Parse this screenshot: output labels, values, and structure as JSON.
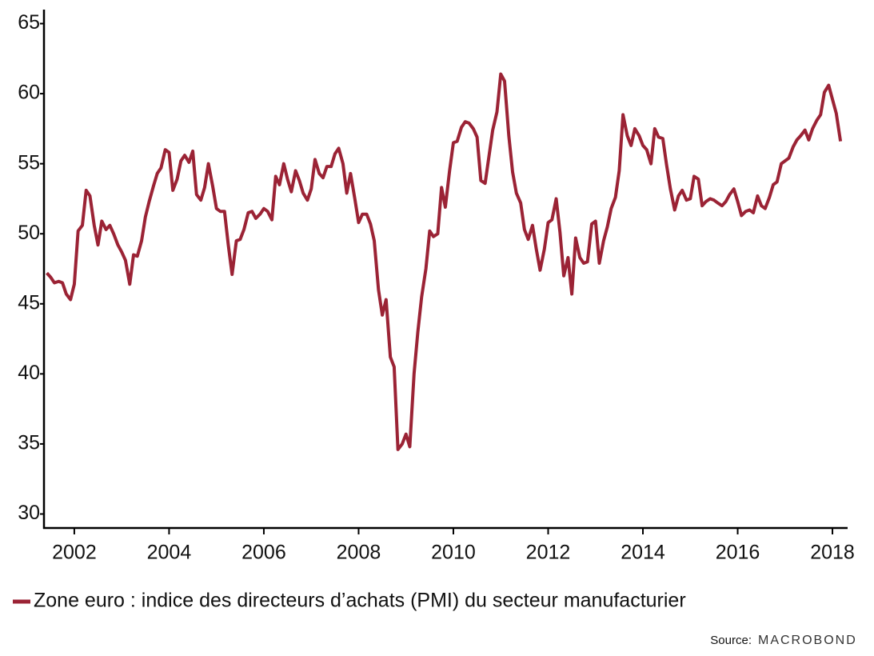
{
  "chart_data": {
    "type": "line",
    "x": [
      2001.42,
      2001.5,
      2001.58,
      2001.67,
      2001.75,
      2001.83,
      2001.92,
      2002.0,
      2002.08,
      2002.17,
      2002.25,
      2002.33,
      2002.42,
      2002.5,
      2002.58,
      2002.67,
      2002.75,
      2002.83,
      2002.92,
      2003.0,
      2003.08,
      2003.17,
      2003.25,
      2003.33,
      2003.42,
      2003.5,
      2003.58,
      2003.67,
      2003.75,
      2003.83,
      2003.92,
      2004.0,
      2004.08,
      2004.17,
      2004.25,
      2004.33,
      2004.42,
      2004.5,
      2004.58,
      2004.67,
      2004.75,
      2004.83,
      2004.92,
      2005.0,
      2005.08,
      2005.17,
      2005.25,
      2005.33,
      2005.42,
      2005.5,
      2005.58,
      2005.67,
      2005.75,
      2005.83,
      2005.92,
      2006.0,
      2006.08,
      2006.17,
      2006.25,
      2006.33,
      2006.42,
      2006.5,
      2006.58,
      2006.67,
      2006.75,
      2006.83,
      2006.92,
      2007.0,
      2007.08,
      2007.17,
      2007.25,
      2007.33,
      2007.42,
      2007.5,
      2007.58,
      2007.67,
      2007.75,
      2007.83,
      2007.92,
      2008.0,
      2008.08,
      2008.17,
      2008.25,
      2008.33,
      2008.42,
      2008.5,
      2008.58,
      2008.67,
      2008.75,
      2008.83,
      2008.92,
      2009.0,
      2009.08,
      2009.17,
      2009.25,
      2009.33,
      2009.42,
      2009.5,
      2009.58,
      2009.67,
      2009.75,
      2009.83,
      2009.92,
      2010.0,
      2010.08,
      2010.17,
      2010.25,
      2010.33,
      2010.42,
      2010.5,
      2010.58,
      2010.67,
      2010.75,
      2010.83,
      2010.92,
      2011.0,
      2011.08,
      2011.17,
      2011.25,
      2011.33,
      2011.42,
      2011.5,
      2011.58,
      2011.67,
      2011.75,
      2011.83,
      2011.92,
      2012.0,
      2012.08,
      2012.17,
      2012.25,
      2012.33,
      2012.42,
      2012.5,
      2012.58,
      2012.67,
      2012.75,
      2012.83,
      2012.92,
      2013.0,
      2013.08,
      2013.17,
      2013.25,
      2013.33,
      2013.42,
      2013.5,
      2013.58,
      2013.67,
      2013.75,
      2013.83,
      2013.92,
      2014.0,
      2014.08,
      2014.17,
      2014.25,
      2014.33,
      2014.42,
      2014.5,
      2014.58,
      2014.67,
      2014.75,
      2014.83,
      2014.92,
      2015.0,
      2015.08,
      2015.17,
      2015.25,
      2015.33,
      2015.42,
      2015.5,
      2015.58,
      2015.67,
      2015.75,
      2015.83,
      2015.92,
      2016.0,
      2016.08,
      2016.17,
      2016.25,
      2016.33,
      2016.42,
      2016.5,
      2016.58,
      2016.67,
      2016.75,
      2016.83,
      2016.92,
      2017.0,
      2017.08,
      2017.17,
      2017.25,
      2017.33,
      2017.42,
      2017.5,
      2017.58,
      2017.67,
      2017.75,
      2017.83,
      2017.92,
      2018.0,
      2018.08,
      2018.17
    ],
    "series": [
      {
        "name": "Zone euro : indice des directeurs d’achats (PMI) du secteur manufacturier",
        "color": "#9b2335",
        "values": [
          47.2,
          46.9,
          46.5,
          46.6,
          46.5,
          45.7,
          45.3,
          46.4,
          50.2,
          50.6,
          53.1,
          52.7,
          50.6,
          49.2,
          50.9,
          50.3,
          50.6,
          50.0,
          49.2,
          48.7,
          48.1,
          46.4,
          48.5,
          48.4,
          49.5,
          51.2,
          52.3,
          53.4,
          54.3,
          54.7,
          56.0,
          55.8,
          53.1,
          53.9,
          55.2,
          55.6,
          55.1,
          55.9,
          52.8,
          52.4,
          53.3,
          55.0,
          53.4,
          51.8,
          51.6,
          51.6,
          49.2,
          47.1,
          49.5,
          49.6,
          50.3,
          51.5,
          51.6,
          51.1,
          51.4,
          51.8,
          51.6,
          51.0,
          54.1,
          53.5,
          55.0,
          53.9,
          53.0,
          54.5,
          53.8,
          52.9,
          52.4,
          53.2,
          55.3,
          54.3,
          54.0,
          54.8,
          54.8,
          55.7,
          56.1,
          55.0,
          52.9,
          54.3,
          52.5,
          50.8,
          51.4,
          51.4,
          50.7,
          49.5,
          46.0,
          44.2,
          45.3,
          41.2,
          40.5,
          34.6,
          35.0,
          35.7,
          34.8,
          40.0,
          43.0,
          45.5,
          47.5,
          50.2,
          49.8,
          50.0,
          53.3,
          51.9,
          54.5,
          56.5,
          56.6,
          57.6,
          58.0,
          57.9,
          57.5,
          56.9,
          53.8,
          53.6,
          55.5,
          57.4,
          58.7,
          61.4,
          60.9,
          57.0,
          54.4,
          52.9,
          52.2,
          50.3,
          49.6,
          50.6,
          48.9,
          47.4,
          48.9,
          50.8,
          51.0,
          52.5,
          50.1,
          47.0,
          48.3,
          45.7,
          49.7,
          48.3,
          47.9,
          48.0,
          50.7,
          50.9,
          47.9,
          49.5,
          50.5,
          51.8,
          52.6,
          54.5,
          58.5,
          57.0,
          56.3,
          57.5,
          57.0,
          56.3,
          56.0,
          55.0,
          57.5,
          56.9,
          56.8,
          54.9,
          53.2,
          51.7,
          52.7,
          53.1,
          52.4,
          52.5,
          54.1,
          53.9,
          52.0,
          52.3,
          52.5,
          52.4,
          52.2,
          52.0,
          52.3,
          52.8,
          53.2,
          52.3,
          51.3,
          51.6,
          51.7,
          51.5,
          52.7,
          52.0,
          51.8,
          52.6,
          53.5,
          53.7,
          55.0,
          55.2,
          55.4,
          56.2,
          56.7,
          57.0,
          57.4,
          56.7,
          57.5,
          58.1,
          58.5,
          60.1,
          60.6,
          59.6,
          58.6,
          56.6
        ]
      }
    ],
    "xlim": [
      2001.36,
      2018.32
    ],
    "xticks": [
      2002,
      2004,
      2006,
      2008,
      2010,
      2012,
      2014,
      2016,
      2018
    ],
    "ylim": [
      29,
      66
    ],
    "yticks": [
      30,
      35,
      40,
      45,
      50,
      55,
      60,
      65
    ],
    "grid": false,
    "legend": "bottom",
    "source": "Source:",
    "source_brand": "MACROBOND"
  }
}
